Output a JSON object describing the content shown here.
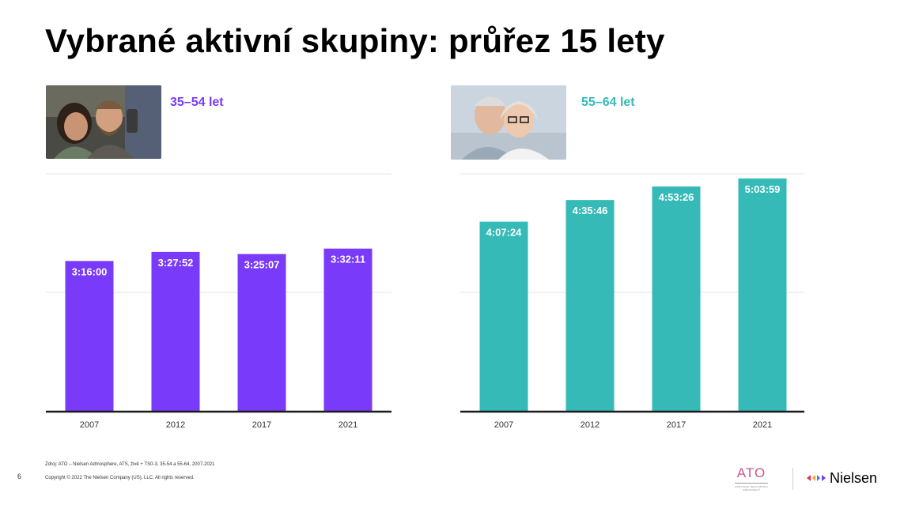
{
  "slide": {
    "title": "Vybrané aktivní skupiny: průřez 15 lety",
    "page_number": "6",
    "source": "Zdroj: ATO – Nielsen Admosphere, ATS, živě + TS0-3, 35-54 a 55-64, 2007-2021",
    "copyright": "Copyright © 2022 The Nielsen Company (US), LLC. All rights reserved.",
    "logos": {
      "ato_text": "ATO",
      "ato_subtitle": "ASOCIACE TELEVIZNÍCH ORGANIZACÍ",
      "nielsen_text": "Nielsen"
    }
  },
  "groups": [
    {
      "label": "35–54 let",
      "color": "#7a3af9"
    },
    {
      "label": "55–64 let",
      "color": "#36bab8"
    }
  ],
  "chart_data": [
    {
      "type": "bar",
      "categories": [
        "2007",
        "2012",
        "2017",
        "2021"
      ],
      "values": [
        11760,
        12472,
        12307,
        12731
      ],
      "data_labels": [
        "3:16:00",
        "3:27:52",
        "3:25:07",
        "3:32:11"
      ],
      "unit": "seconds (h:mm:ss)",
      "ylim": [
        0,
        18600
      ],
      "gridlines": [
        9300,
        18600
      ],
      "grid": true,
      "color": "#7a3af9"
    },
    {
      "type": "bar",
      "categories": [
        "2007",
        "2012",
        "2017",
        "2021"
      ],
      "values": [
        14844,
        16546,
        17606,
        18239
      ],
      "data_labels": [
        "4:07:24",
        "4:35:46",
        "4:53:26",
        "5:03:59"
      ],
      "unit": "seconds (h:mm:ss)",
      "ylim": [
        0,
        18600
      ],
      "gridlines": [
        9300,
        18600
      ],
      "grid": true,
      "color": "#36bab8"
    }
  ]
}
